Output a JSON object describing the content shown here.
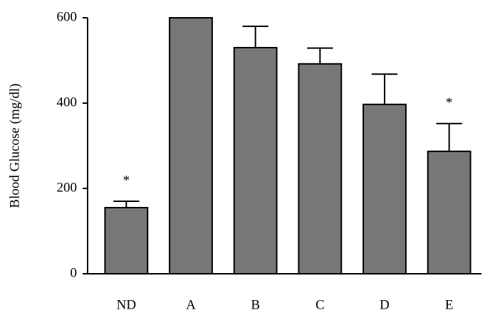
{
  "chart_data": {
    "type": "bar",
    "y_label": "Blood Glucose (mg/dl)",
    "categories": [
      "ND",
      "A",
      "B",
      "C",
      "D",
      "E"
    ],
    "values": [
      155,
      600,
      530,
      492,
      397,
      287
    ],
    "errors": [
      15,
      0,
      50,
      37,
      71,
      65
    ],
    "annotations": [
      "*",
      null,
      null,
      null,
      null,
      "*"
    ],
    "color": "#777777",
    "ylim": [
      0,
      600
    ],
    "yticks": [
      0,
      200,
      400,
      600
    ],
    "grid": false
  }
}
